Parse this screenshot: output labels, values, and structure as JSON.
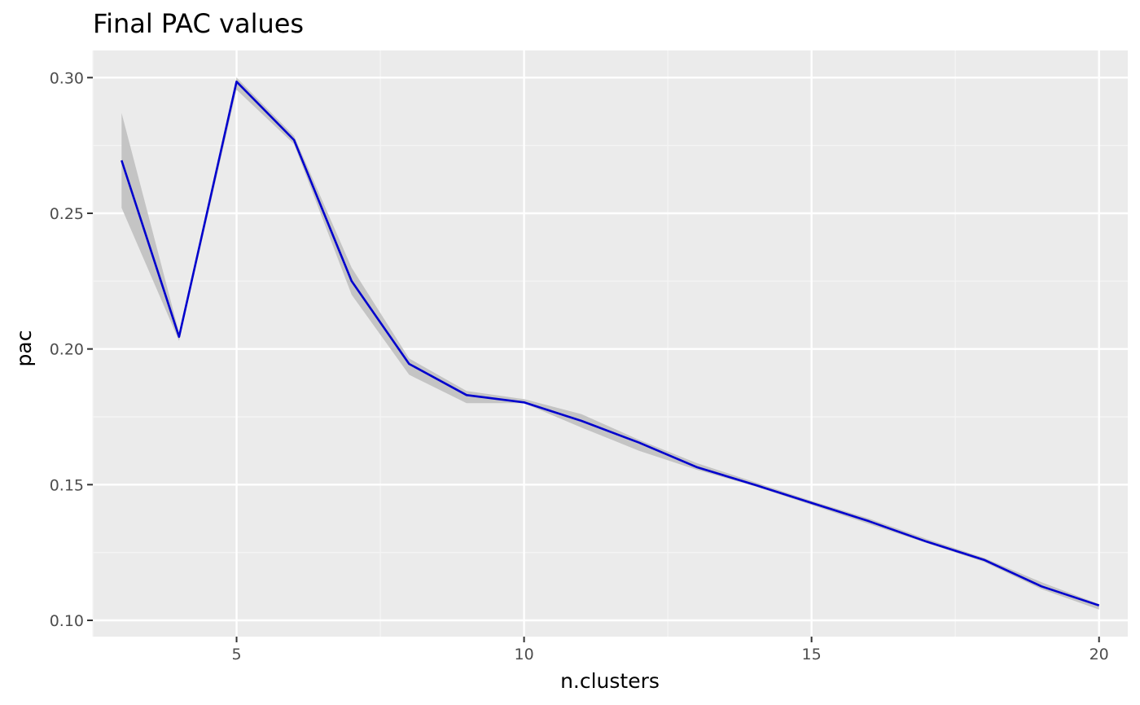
{
  "chart_data": {
    "type": "line",
    "title": "Final PAC values",
    "xlabel": "n.clusters",
    "ylabel": "pac",
    "xlim": [
      2.5,
      20.5
    ],
    "ylim": [
      0.094,
      0.31
    ],
    "x_ticks": [
      5,
      10,
      15,
      20
    ],
    "x_tick_labels": [
      "5",
      "10",
      "15",
      "20"
    ],
    "y_ticks": [
      0.1,
      0.15,
      0.2,
      0.25,
      0.3
    ],
    "y_tick_labels": [
      "0.10",
      "0.15",
      "0.20",
      "0.25",
      "0.30"
    ],
    "grid": true,
    "legend": "none",
    "colors": {
      "panel": "#ebebeb",
      "grid_major": "#ffffff",
      "grid_minor": "#f5f5f5",
      "line": "#0000cd",
      "ribbon": "#c4c4c4"
    },
    "series": [
      {
        "x": [
          3,
          4,
          5,
          6,
          7,
          8,
          9,
          10,
          11,
          12,
          13,
          14,
          15,
          16,
          17,
          18,
          19,
          20
        ],
        "values": [
          0.2695,
          0.2045,
          0.2985,
          0.277,
          0.225,
          0.1945,
          0.183,
          0.1803,
          0.1735,
          0.1655,
          0.1565,
          0.15,
          0.1433,
          0.1365,
          0.129,
          0.1223,
          0.1125,
          0.1055
        ],
        "lower": [
          0.252,
          0.203,
          0.2955,
          0.2755,
          0.22,
          0.1905,
          0.18,
          0.18,
          0.171,
          0.1625,
          0.1555,
          0.1495,
          0.1425,
          0.1355,
          0.1285,
          0.1215,
          0.1115,
          0.104
        ],
        "upper": [
          0.287,
          0.206,
          0.3,
          0.2785,
          0.23,
          0.1965,
          0.1845,
          0.1815,
          0.176,
          0.1665,
          0.158,
          0.151,
          0.144,
          0.1375,
          0.13,
          0.123,
          0.114,
          0.106
        ]
      }
    ]
  }
}
